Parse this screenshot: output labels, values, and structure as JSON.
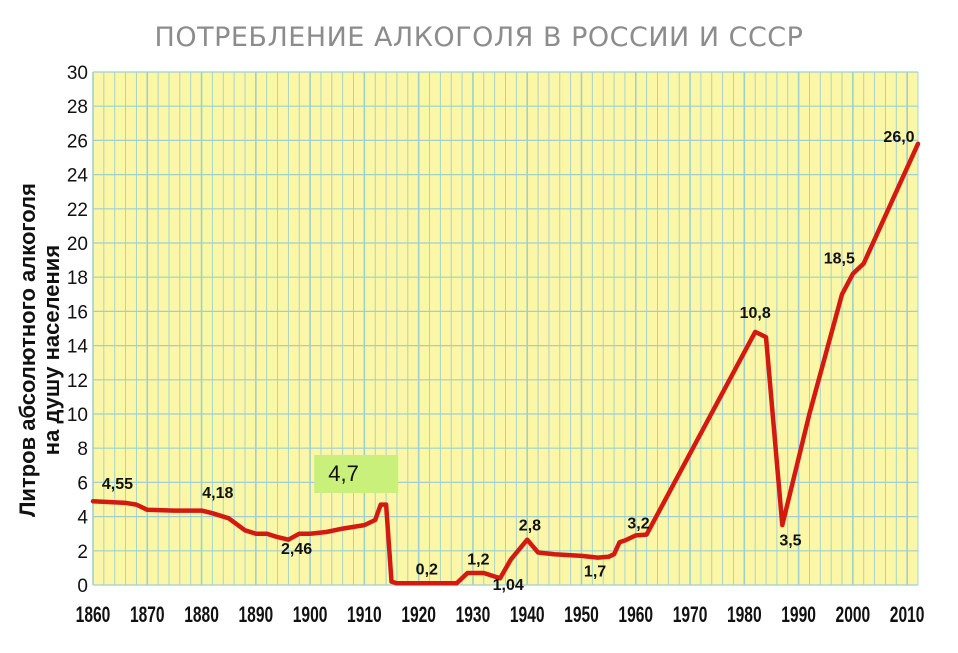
{
  "chart_data": {
    "type": "line",
    "title": "ПОТРЕБЛЕНИЕ АЛКОГОЛЯ В РОССИИ И СССР",
    "ylabel_lines": [
      "Литров абсолютного алкоголя",
      "на душу населения"
    ],
    "xlabel": "",
    "xlim": [
      1860,
      2012
    ],
    "ylim": [
      0,
      30
    ],
    "x_ticks": [
      1860,
      1870,
      1880,
      1890,
      1900,
      1910,
      1920,
      1930,
      1940,
      1950,
      1960,
      1970,
      1980,
      1990,
      2000,
      2010
    ],
    "y_ticks": [
      0,
      2,
      4,
      6,
      8,
      10,
      12,
      14,
      16,
      18,
      20,
      22,
      24,
      26,
      28,
      30
    ],
    "grid": true,
    "background_color": "#fbf7a6",
    "grid_color": "#9fd0cc",
    "line_color": "#d41a10",
    "series": [
      {
        "points": [
          [
            1860,
            4.9
          ],
          [
            1866,
            4.8
          ],
          [
            1868,
            4.7
          ],
          [
            1870,
            4.4
          ],
          [
            1875,
            4.35
          ],
          [
            1880,
            4.35
          ],
          [
            1882,
            4.2
          ],
          [
            1885,
            3.9
          ],
          [
            1888,
            3.2
          ],
          [
            1890,
            3.0
          ],
          [
            1892,
            3.0
          ],
          [
            1894,
            2.8
          ],
          [
            1896,
            2.65
          ],
          [
            1898,
            3.0
          ],
          [
            1900,
            3.0
          ],
          [
            1903,
            3.1
          ],
          [
            1906,
            3.3
          ],
          [
            1910,
            3.5
          ],
          [
            1912,
            3.8
          ],
          [
            1913,
            4.7
          ],
          [
            1914,
            4.7
          ],
          [
            1915,
            0.2
          ],
          [
            1916,
            0.1
          ],
          [
            1918,
            0.1
          ],
          [
            1920,
            0.1
          ],
          [
            1922,
            0.1
          ],
          [
            1927,
            0.1
          ],
          [
            1929,
            0.7
          ],
          [
            1932,
            0.7
          ],
          [
            1934,
            0.5
          ],
          [
            1935,
            0.4
          ],
          [
            1937,
            1.5
          ],
          [
            1940,
            2.65
          ],
          [
            1942,
            1.9
          ],
          [
            1945,
            1.8
          ],
          [
            1950,
            1.7
          ],
          [
            1953,
            1.6
          ],
          [
            1955,
            1.65
          ],
          [
            1956,
            1.8
          ],
          [
            1957,
            2.5
          ],
          [
            1958,
            2.6
          ],
          [
            1960,
            2.9
          ],
          [
            1962,
            2.95
          ],
          [
            1982,
            14.8
          ],
          [
            1984,
            14.5
          ],
          [
            1987,
            3.5
          ],
          [
            1992,
            10.0
          ],
          [
            1998,
            17.0
          ],
          [
            2000,
            18.2
          ],
          [
            2002,
            18.8
          ],
          [
            2012,
            25.8
          ]
        ]
      }
    ],
    "annotations": [
      {
        "text": "4,55",
        "x": 1864.5,
        "y": 5.6
      },
      {
        "text": "4,18",
        "x": 1883,
        "y": 5.1
      },
      {
        "text": "2,46",
        "x": 1897.5,
        "y": 1.8
      },
      {
        "text": "4,7",
        "x": 1908.5,
        "y": 5.5,
        "boxed": true,
        "box_color": "#c8f07a"
      },
      {
        "text": "0,2",
        "x": 1921.5,
        "y": 0.6
      },
      {
        "text": "1,2",
        "x": 1931,
        "y": 1.2
      },
      {
        "text": "1,04",
        "x": 1936.5,
        "y": -0.3
      },
      {
        "text": "2,8",
        "x": 1940.5,
        "y": 3.2
      },
      {
        "text": "1,7",
        "x": 1952.5,
        "y": 0.5
      },
      {
        "text": "3,2",
        "x": 1960.5,
        "y": 3.3
      },
      {
        "text": "10,8",
        "x": 1982,
        "y": 15.6
      },
      {
        "text": "3,5",
        "x": 1988.5,
        "y": 2.3
      },
      {
        "text": "18,5",
        "x": 1997.5,
        "y": 18.8
      },
      {
        "text": "26,0",
        "x": 2008.5,
        "y": 25.9
      }
    ]
  }
}
